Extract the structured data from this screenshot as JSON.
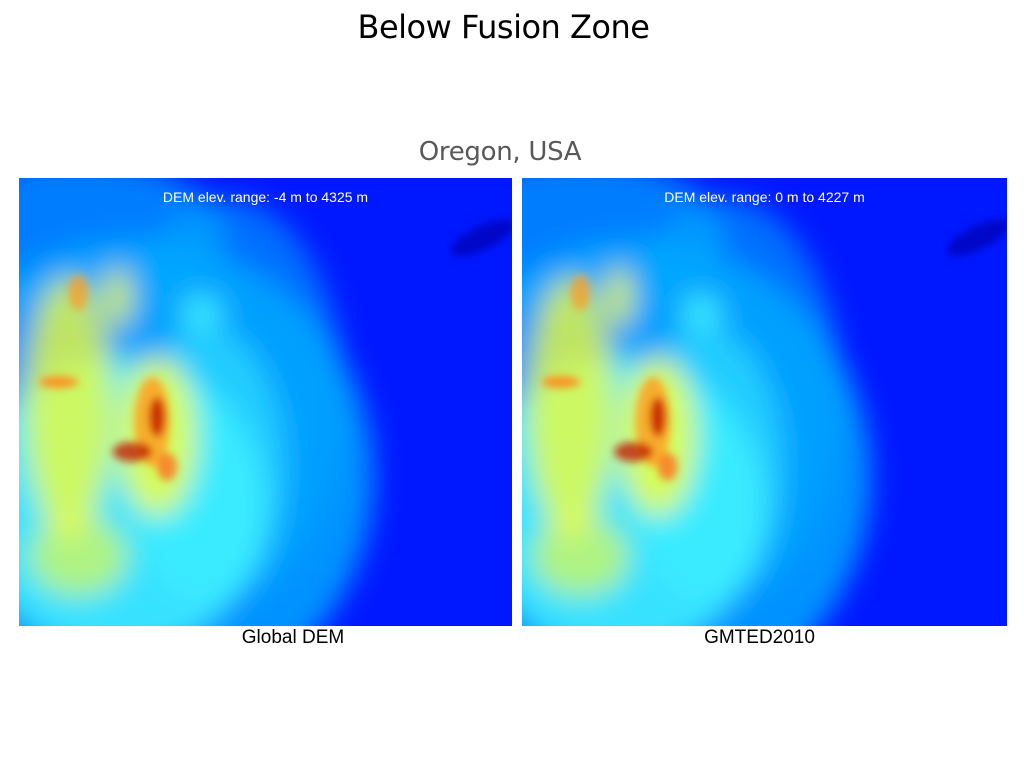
{
  "slide": {
    "title": "Below Fusion Zone",
    "subtitle": "Oregon, USA"
  },
  "panels": [
    {
      "caption": "Global DEM",
      "elev_range_text": "DEM elev. range: -4 m to 4325 m"
    },
    {
      "caption": "GMTED2010",
      "elev_range_text": "DEM elev. range: 0 m to 4227 m"
    }
  ],
  "colormap": {
    "low": "#0018ff",
    "mid_low": "#00a8ff",
    "mid": "#3ff0ff",
    "mid_high": "#ffff30",
    "high": "#c01000"
  }
}
